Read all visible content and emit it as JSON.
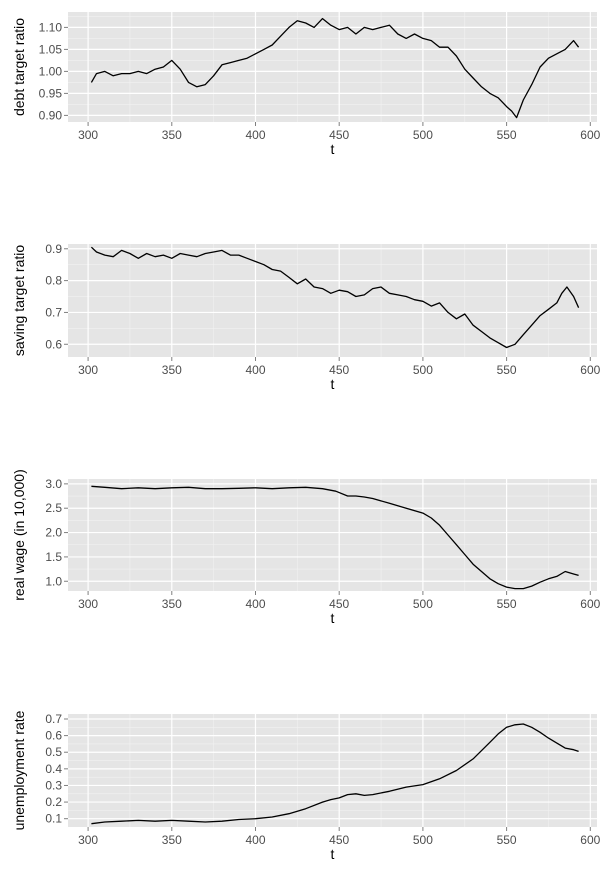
{
  "chart_data": [
    {
      "type": "line",
      "title": "",
      "xlabel": "t",
      "ylabel": "debt target ratio",
      "xlim": [
        288,
        604
      ],
      "ylim": [
        0.885,
        1.135
      ],
      "x_ticks": [
        300,
        350,
        400,
        450,
        500,
        550,
        600
      ],
      "y_ticks": [
        0.9,
        0.95,
        1.0,
        1.05,
        1.1
      ],
      "y_tick_labels": [
        "0.90",
        "0.95",
        "1.00",
        "1.05",
        "1.10"
      ],
      "grid": true,
      "background": "#e5e5e5",
      "line_color": "#000000",
      "series": [
        {
          "x": [
            302,
            305,
            310,
            315,
            320,
            325,
            330,
            335,
            340,
            345,
            350,
            355,
            360,
            365,
            370,
            375,
            380,
            385,
            390,
            395,
            400,
            405,
            410,
            415,
            420,
            425,
            430,
            435,
            440,
            445,
            450,
            455,
            460,
            465,
            470,
            475,
            480,
            485,
            490,
            495,
            500,
            505,
            510,
            515,
            520,
            525,
            530,
            535,
            540,
            545,
            550,
            553,
            556,
            560,
            565,
            570,
            575,
            580,
            585,
            590,
            593
          ],
          "y": [
            0.975,
            0.995,
            1.0,
            0.99,
            0.995,
            0.995,
            1.0,
            0.995,
            1.005,
            1.01,
            1.025,
            1.005,
            0.975,
            0.965,
            0.97,
            0.99,
            1.015,
            1.02,
            1.025,
            1.03,
            1.04,
            1.05,
            1.06,
            1.08,
            1.1,
            1.115,
            1.11,
            1.1,
            1.12,
            1.105,
            1.095,
            1.1,
            1.085,
            1.1,
            1.095,
            1.1,
            1.105,
            1.085,
            1.075,
            1.085,
            1.075,
            1.07,
            1.055,
            1.055,
            1.035,
            1.005,
            0.985,
            0.965,
            0.95,
            0.94,
            0.92,
            0.91,
            0.895,
            0.935,
            0.97,
            1.01,
            1.03,
            1.04,
            1.05,
            1.07,
            1.055
          ]
        }
      ]
    },
    {
      "type": "line",
      "title": "",
      "xlabel": "t",
      "ylabel": "saving target ratio",
      "xlim": [
        288,
        604
      ],
      "ylim": [
        0.56,
        0.915
      ],
      "x_ticks": [
        300,
        350,
        400,
        450,
        500,
        550,
        600
      ],
      "y_ticks": [
        0.6,
        0.7,
        0.8,
        0.9
      ],
      "y_tick_labels": [
        "0.6",
        "0.7",
        "0.8",
        "0.9"
      ],
      "grid": true,
      "background": "#e5e5e5",
      "line_color": "#000000",
      "series": [
        {
          "x": [
            302,
            305,
            310,
            315,
            320,
            325,
            330,
            335,
            340,
            345,
            350,
            355,
            360,
            365,
            370,
            375,
            380,
            385,
            390,
            395,
            400,
            405,
            410,
            415,
            420,
            425,
            430,
            435,
            440,
            445,
            450,
            455,
            460,
            465,
            470,
            475,
            480,
            485,
            490,
            495,
            500,
            505,
            510,
            515,
            520,
            525,
            530,
            535,
            540,
            545,
            550,
            555,
            560,
            565,
            570,
            575,
            580,
            583,
            586,
            590,
            593
          ],
          "y": [
            0.905,
            0.89,
            0.88,
            0.875,
            0.895,
            0.885,
            0.87,
            0.885,
            0.875,
            0.88,
            0.87,
            0.885,
            0.88,
            0.875,
            0.885,
            0.89,
            0.895,
            0.88,
            0.88,
            0.87,
            0.86,
            0.85,
            0.835,
            0.83,
            0.81,
            0.79,
            0.805,
            0.78,
            0.775,
            0.76,
            0.77,
            0.765,
            0.75,
            0.755,
            0.775,
            0.78,
            0.76,
            0.755,
            0.75,
            0.74,
            0.735,
            0.72,
            0.73,
            0.7,
            0.68,
            0.695,
            0.66,
            0.64,
            0.62,
            0.605,
            0.59,
            0.6,
            0.63,
            0.66,
            0.69,
            0.71,
            0.73,
            0.76,
            0.78,
            0.75,
            0.715
          ]
        }
      ]
    },
    {
      "type": "line",
      "title": "",
      "xlabel": "t",
      "ylabel": "real wage (in 10,000)",
      "xlim": [
        288,
        604
      ],
      "ylim": [
        0.8,
        3.1
      ],
      "x_ticks": [
        300,
        350,
        400,
        450,
        500,
        550,
        600
      ],
      "y_ticks": [
        1.0,
        1.5,
        2.0,
        2.5,
        3.0
      ],
      "y_tick_labels": [
        "1.0",
        "1.5",
        "2.0",
        "2.5",
        "3.0"
      ],
      "grid": true,
      "background": "#e5e5e5",
      "line_color": "#000000",
      "series": [
        {
          "x": [
            302,
            310,
            320,
            330,
            340,
            350,
            360,
            370,
            380,
            390,
            400,
            410,
            420,
            430,
            440,
            448,
            455,
            460,
            465,
            470,
            480,
            490,
            500,
            505,
            510,
            515,
            520,
            525,
            530,
            535,
            540,
            545,
            550,
            555,
            560,
            565,
            570,
            575,
            580,
            585,
            590,
            593
          ],
          "y": [
            2.95,
            2.93,
            2.9,
            2.92,
            2.9,
            2.92,
            2.93,
            2.9,
            2.9,
            2.91,
            2.92,
            2.9,
            2.92,
            2.93,
            2.9,
            2.85,
            2.75,
            2.75,
            2.73,
            2.7,
            2.6,
            2.5,
            2.4,
            2.3,
            2.15,
            1.95,
            1.75,
            1.55,
            1.35,
            1.2,
            1.05,
            0.95,
            0.88,
            0.85,
            0.85,
            0.9,
            0.98,
            1.05,
            1.1,
            1.2,
            1.15,
            1.12
          ]
        }
      ]
    },
    {
      "type": "line",
      "title": "",
      "xlabel": "t",
      "ylabel": "unemployment rate",
      "xlim": [
        288,
        604
      ],
      "ylim": [
        0.05,
        0.73
      ],
      "x_ticks": [
        300,
        350,
        400,
        450,
        500,
        550,
        600
      ],
      "y_ticks": [
        0.1,
        0.2,
        0.3,
        0.4,
        0.5,
        0.6,
        0.7
      ],
      "y_tick_labels": [
        "0.1",
        "0.2",
        "0.3",
        "0.4",
        "0.5",
        "0.6",
        "0.7"
      ],
      "grid": true,
      "background": "#e5e5e5",
      "line_color": "#000000",
      "series": [
        {
          "x": [
            302,
            310,
            320,
            330,
            340,
            350,
            360,
            370,
            380,
            390,
            400,
            410,
            420,
            430,
            440,
            445,
            450,
            455,
            460,
            465,
            470,
            480,
            490,
            500,
            510,
            520,
            530,
            540,
            545,
            550,
            555,
            560,
            565,
            570,
            575,
            580,
            585,
            590,
            593
          ],
          "y": [
            0.07,
            0.08,
            0.085,
            0.09,
            0.085,
            0.09,
            0.085,
            0.08,
            0.085,
            0.095,
            0.1,
            0.11,
            0.13,
            0.16,
            0.2,
            0.215,
            0.225,
            0.245,
            0.25,
            0.24,
            0.245,
            0.265,
            0.29,
            0.305,
            0.34,
            0.39,
            0.46,
            0.56,
            0.61,
            0.65,
            0.665,
            0.67,
            0.65,
            0.62,
            0.585,
            0.555,
            0.525,
            0.515,
            0.505
          ]
        }
      ]
    }
  ]
}
